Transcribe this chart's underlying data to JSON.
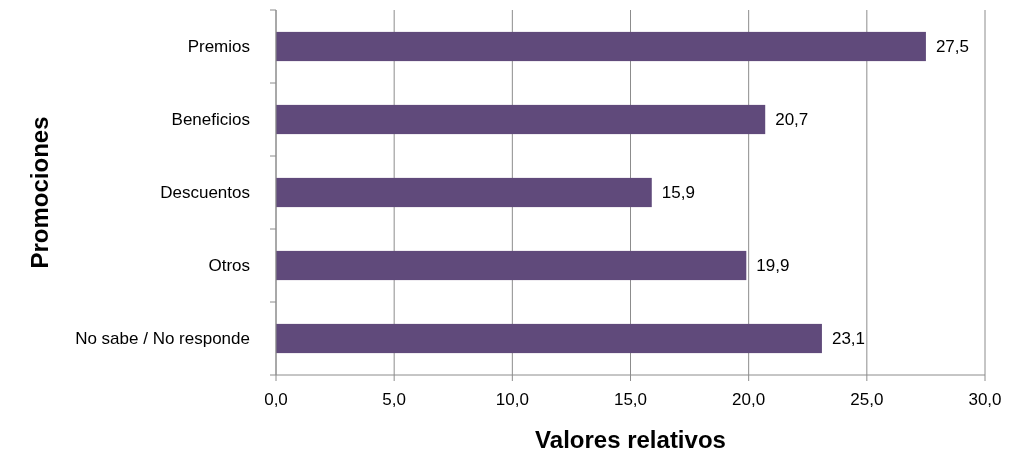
{
  "chart_data": {
    "type": "bar",
    "orientation": "horizontal",
    "xlabel": "Valores relativos",
    "ylabel": "Promociones",
    "categories": [
      "Premios",
      "Beneficios",
      "Descuentos",
      "Otros",
      "No sabe / No responde"
    ],
    "values": [
      27.5,
      20.7,
      15.9,
      19.9,
      23.1
    ],
    "value_labels": [
      "27,5",
      "20,7",
      "15,9",
      "19,9",
      "23,1"
    ],
    "color": "#604a7b",
    "xlim": [
      0,
      30
    ],
    "xticks": [
      {
        "value": 0,
        "label": "0,0"
      },
      {
        "value": 5,
        "label": "5,0"
      },
      {
        "value": 10,
        "label": "10,0"
      },
      {
        "value": 15,
        "label": "15,0"
      },
      {
        "value": 20,
        "label": "20,0"
      },
      {
        "value": 25,
        "label": "25,0"
      },
      {
        "value": 30,
        "label": "30,0"
      }
    ],
    "grid": "x"
  }
}
